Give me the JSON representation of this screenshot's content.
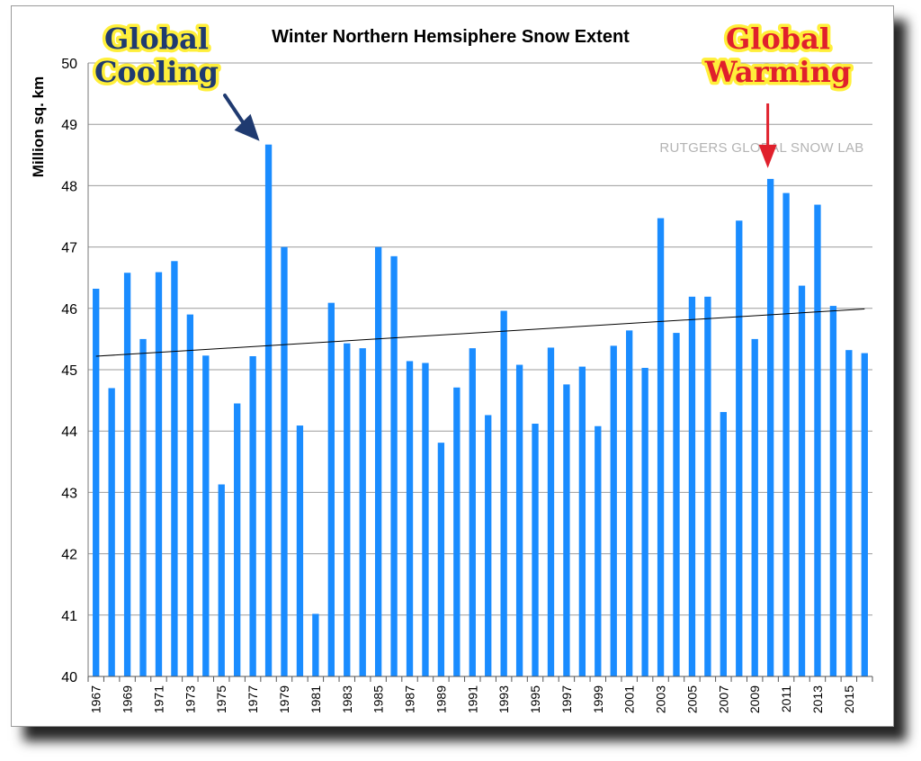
{
  "chart_data": {
    "type": "bar",
    "title": "Winter Northern Hemsiphere Snow Extent",
    "ylabel": "Million sq. km",
    "ylim": [
      40,
      50
    ],
    "yticks": [
      "40",
      "41",
      "42",
      "43",
      "44",
      "45",
      "46",
      "47",
      "48",
      "49",
      "50"
    ],
    "x": [
      1967,
      1968,
      1969,
      1970,
      1971,
      1972,
      1973,
      1974,
      1975,
      1976,
      1977,
      1978,
      1979,
      1980,
      1981,
      1982,
      1983,
      1984,
      1985,
      1986,
      1987,
      1988,
      1989,
      1990,
      1991,
      1992,
      1993,
      1994,
      1995,
      1996,
      1997,
      1998,
      1999,
      2000,
      2001,
      2002,
      2003,
      2004,
      2005,
      2006,
      2007,
      2008,
      2009,
      2010,
      2011,
      2012,
      2013,
      2014,
      2015,
      2016
    ],
    "x_tick_labels": [
      "1967",
      "1969",
      "1971",
      "1973",
      "1975",
      "1977",
      "1979",
      "1981",
      "1983",
      "1985",
      "1987",
      "1989",
      "1991",
      "1993",
      "1995",
      "1997",
      "1999",
      "2001",
      "2003",
      "2005",
      "2007",
      "2009",
      "2011",
      "2013",
      "2015"
    ],
    "values": [
      46.32,
      44.7,
      46.58,
      45.5,
      46.59,
      46.77,
      45.9,
      45.23,
      43.13,
      44.45,
      45.22,
      48.67,
      47.0,
      44.09,
      41.02,
      46.09,
      45.43,
      45.35,
      47.0,
      46.85,
      45.14,
      45.11,
      43.81,
      44.71,
      45.35,
      44.26,
      45.96,
      45.08,
      44.12,
      45.36,
      44.76,
      45.05,
      44.08,
      45.39,
      45.64,
      45.03,
      47.47,
      45.6,
      46.19,
      46.19,
      44.31,
      47.43,
      45.5,
      48.11,
      47.88,
      46.37,
      47.69,
      46.04,
      45.32,
      45.27
    ],
    "trend": {
      "start": 45.22,
      "end": 45.99
    },
    "bar_color": "#1a8cff",
    "grid": "horizontal",
    "watermark": "RUTGERS GLOBAL SNOW LAB",
    "annotations": [
      {
        "lines": [
          "Global",
          "Cooling"
        ],
        "year": 1978,
        "color": "#1f3a70",
        "outline": "#ffef3a"
      },
      {
        "lines": [
          "Global",
          "Warming"
        ],
        "year": 2010,
        "color": "#e0202c",
        "outline": "#ffef3a"
      }
    ]
  }
}
